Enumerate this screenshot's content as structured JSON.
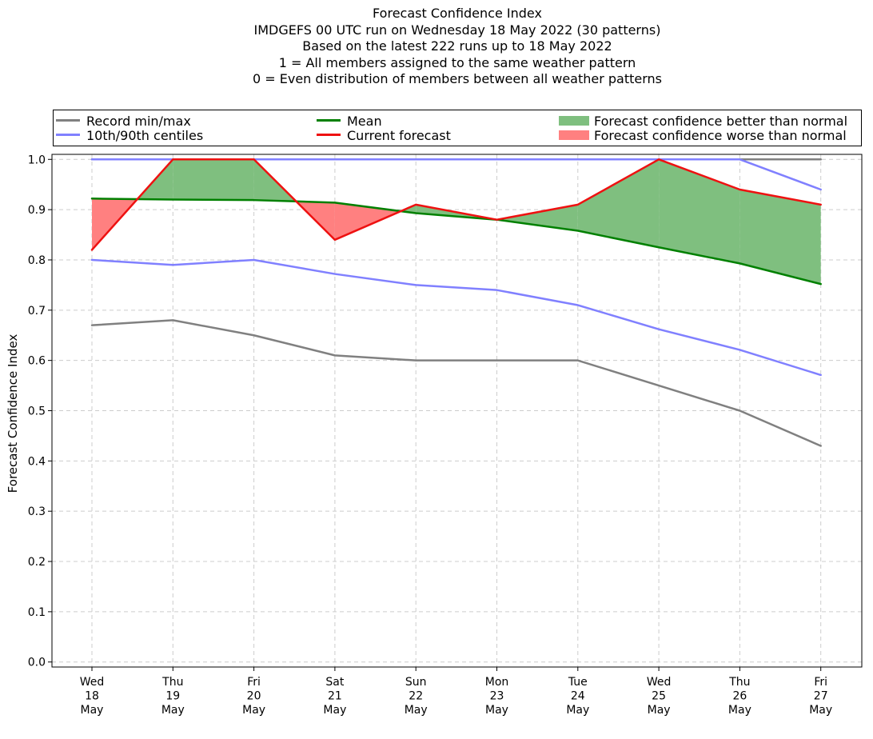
{
  "chart_data": {
    "type": "line",
    "title": [
      "Forecast Confidence Index",
      "IMDGEFS 00 UTC run on Wednesday 18 May 2022 (30 patterns)",
      "Based on the latest 222 runs up to 18 May 2022",
      "1 = All members assigned to the same weather pattern",
      "0 = Even distribution of members between all weather patterns"
    ],
    "ylabel": "Forecast Confidence Index",
    "xlabel": "",
    "ylim": [
      -0.01,
      1.01
    ],
    "yticks": [
      "0.0",
      "0.1",
      "0.2",
      "0.3",
      "0.4",
      "0.5",
      "0.6",
      "0.7",
      "0.8",
      "0.9",
      "1.0"
    ],
    "grid": true,
    "categories": [
      [
        "Wed",
        "18",
        "May"
      ],
      [
        "Thu",
        "19",
        "May"
      ],
      [
        "Fri",
        "20",
        "May"
      ],
      [
        "Sat",
        "21",
        "May"
      ],
      [
        "Sun",
        "22",
        "May"
      ],
      [
        "Mon",
        "23",
        "May"
      ],
      [
        "Tue",
        "24",
        "May"
      ],
      [
        "Wed",
        "25",
        "May"
      ],
      [
        "Thu",
        "26",
        "May"
      ],
      [
        "Fri",
        "27",
        "May"
      ]
    ],
    "series": [
      {
        "name": "Record max",
        "color": "#808080",
        "values": [
          1.0,
          1.0,
          1.0,
          1.0,
          1.0,
          1.0,
          1.0,
          1.0,
          1.0,
          1.0
        ]
      },
      {
        "name": "Record min",
        "color": "#808080",
        "values": [
          0.67,
          0.68,
          0.65,
          0.61,
          0.6,
          0.6,
          0.6,
          0.55,
          0.5,
          0.43
        ]
      },
      {
        "name": "90th centile",
        "color": "#8080ff",
        "values": [
          1.0,
          1.0,
          1.0,
          1.0,
          1.0,
          1.0,
          1.0,
          1.0,
          1.0,
          0.94
        ]
      },
      {
        "name": "10th centile",
        "color": "#8080ff",
        "values": [
          0.8,
          0.79,
          0.8,
          0.772,
          0.75,
          0.74,
          0.71,
          0.662,
          0.621,
          0.571
        ]
      },
      {
        "name": "Mean",
        "color": "#008000",
        "values": [
          0.922,
          0.92,
          0.919,
          0.914,
          0.893,
          0.88,
          0.858,
          0.825,
          0.793,
          0.752
        ]
      },
      {
        "name": "Current forecast",
        "color": "#ee1111",
        "values": [
          0.82,
          1.0,
          1.0,
          0.84,
          0.91,
          0.88,
          0.91,
          1.0,
          0.94,
          0.91
        ]
      }
    ],
    "legend": [
      {
        "label": "Record min/max",
        "kind": "line",
        "color": "#808080"
      },
      {
        "label": "Mean",
        "kind": "line",
        "color": "#008000"
      },
      {
        "label": "Forecast confidence better than normal",
        "kind": "patch",
        "color": "#7fbf7f"
      },
      {
        "label": "10th/90th centiles",
        "kind": "line",
        "color": "#8080ff"
      },
      {
        "label": "Current forecast",
        "kind": "line",
        "color": "#ee1111"
      },
      {
        "label": "Forecast confidence worse than normal",
        "kind": "patch",
        "color": "#ff8080"
      }
    ],
    "fill_better_color": "#7fbf7f",
    "fill_worse_color": "#ff8080"
  }
}
